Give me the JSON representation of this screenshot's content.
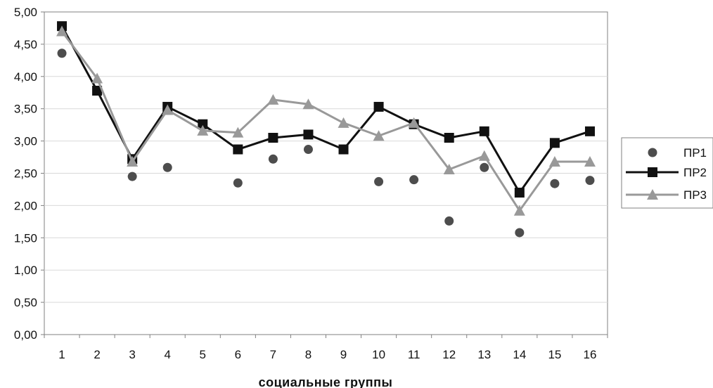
{
  "chart_data": {
    "type": "line",
    "x": [
      1,
      2,
      3,
      4,
      5,
      6,
      7,
      8,
      9,
      10,
      11,
      12,
      13,
      14,
      15,
      16
    ],
    "xlabel": "социальные группы",
    "ylabel": "",
    "ylim": [
      0,
      5
    ],
    "y_ticks": [
      "0,00",
      "0,50",
      "1,00",
      "1,50",
      "2,00",
      "2,50",
      "3,00",
      "3,50",
      "4,00",
      "4,50",
      "5,00"
    ],
    "grid": true,
    "legend_position": "right",
    "series": [
      {
        "name": "ПР1",
        "style": "markers",
        "marker": "circle",
        "color": "#4d4d4d",
        "values": [
          4.36,
          null,
          2.45,
          2.59,
          null,
          2.35,
          2.72,
          2.87,
          null,
          2.37,
          2.4,
          1.76,
          2.59,
          1.58,
          2.34,
          2.39
        ]
      },
      {
        "name": "ПР2",
        "style": "line",
        "marker": "square",
        "color": "#111111",
        "values": [
          4.78,
          3.78,
          2.72,
          3.53,
          3.26,
          2.87,
          3.05,
          3.1,
          2.87,
          3.53,
          3.26,
          3.05,
          3.15,
          2.2,
          2.97,
          3.15
        ]
      },
      {
        "name": "ПР3",
        "style": "line",
        "marker": "triangle",
        "color": "#999999",
        "values": [
          4.7,
          3.97,
          2.68,
          3.48,
          3.16,
          3.13,
          3.64,
          3.57,
          3.28,
          3.08,
          3.28,
          2.56,
          2.77,
          1.92,
          2.68,
          2.68
        ]
      }
    ]
  }
}
